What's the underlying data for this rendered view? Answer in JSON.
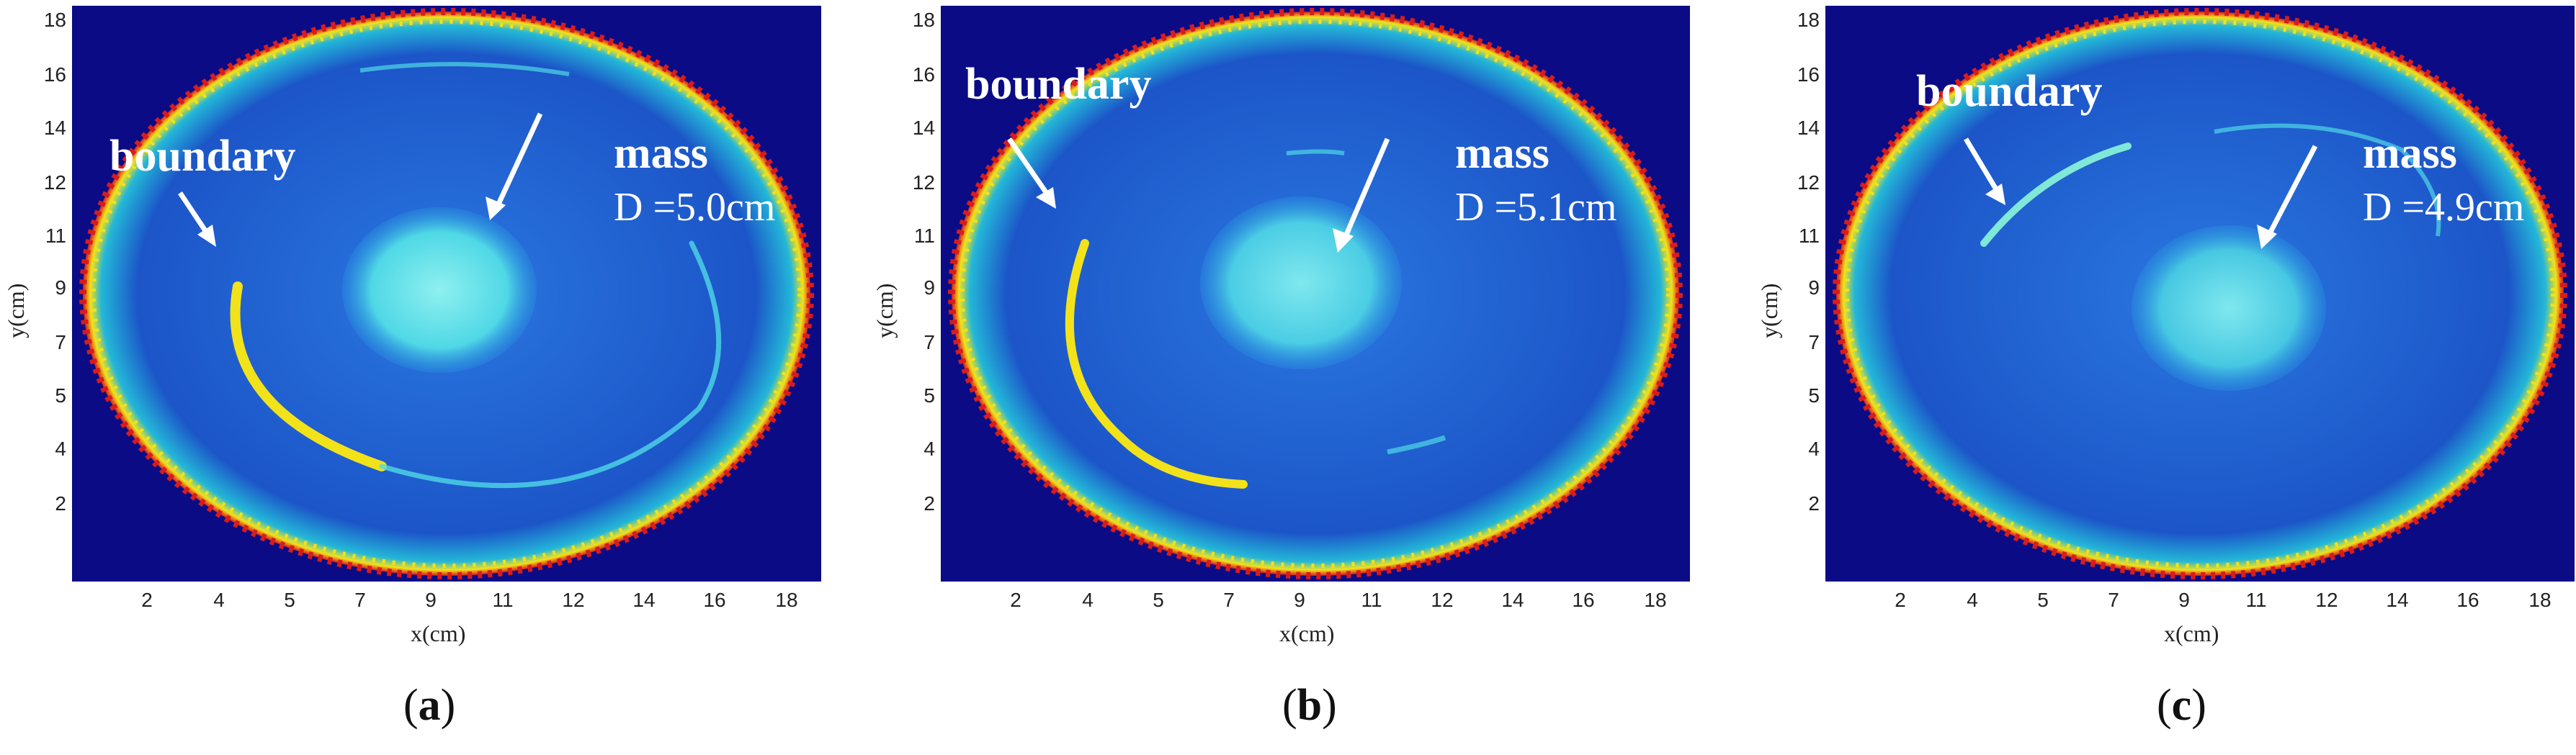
{
  "figure": {
    "panels": [
      {
        "id": "a",
        "label": "a",
        "annotations": {
          "boundary": "boundary",
          "mass": "mass",
          "diameter": "D =5.0cm"
        }
      },
      {
        "id": "b",
        "label": "b",
        "annotations": {
          "boundary": "boundary",
          "mass": "mass",
          "diameter": "D =5.1cm"
        }
      },
      {
        "id": "c",
        "label": "c",
        "annotations": {
          "boundary": "boundary",
          "mass": "mass",
          "diameter": "D =4.9cm"
        }
      }
    ],
    "axes": {
      "xlabel": "x(cm)",
      "ylabel": "y(cm)",
      "xticks": [
        "2",
        "4",
        "5",
        "7",
        "9",
        "11",
        "12",
        "14",
        "16",
        "18"
      ],
      "yticks": [
        "18",
        "16",
        "14",
        "12",
        "11",
        "9",
        "7",
        "5",
        "4",
        "2"
      ]
    },
    "colors": {
      "background": "#0b0b86",
      "field": "#1f5fd0",
      "mass": "#4fd8e6",
      "ring_hot": "#d81c1c",
      "ring_warm": "#f2e21a",
      "annotation": "#ffffff"
    }
  }
}
